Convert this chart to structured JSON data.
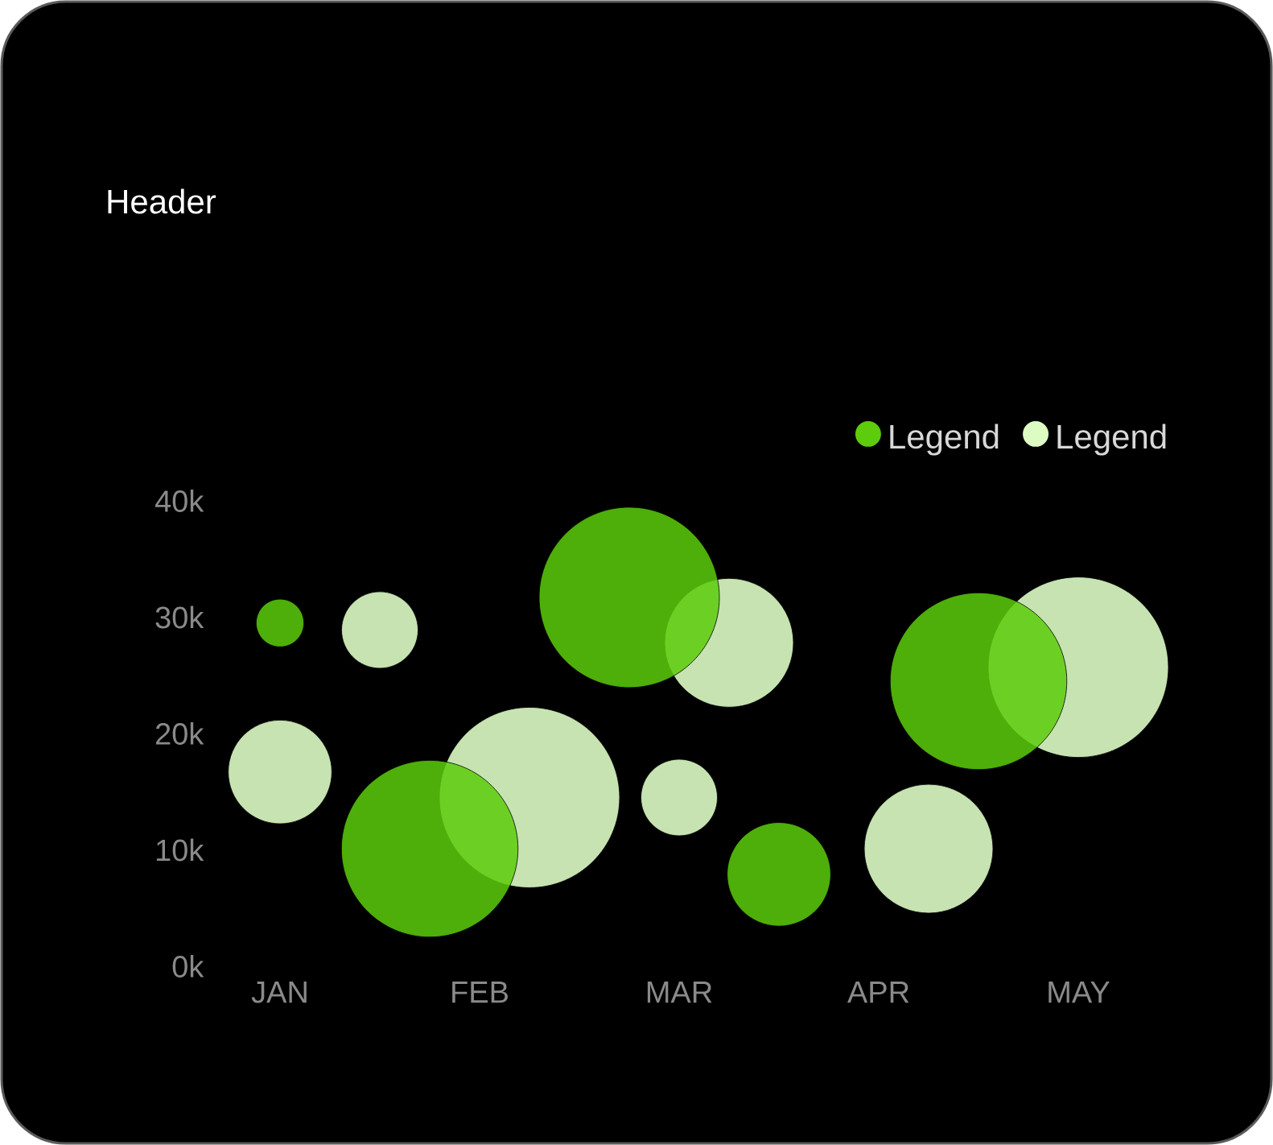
{
  "chart_data": {
    "type": "bubble",
    "title": "Header",
    "legend": "top right",
    "categories": [
      "JAN",
      null,
      null,
      null,
      "FEB",
      null,
      null,
      null,
      "MAR",
      null,
      null,
      null,
      "APR",
      null,
      null,
      null,
      "MAY"
    ],
    "ylim": [
      0,
      40000
    ],
    "yticks": [
      {
        "value": 0,
        "label": "0k"
      },
      {
        "value": 10000,
        "label": "10k"
      },
      {
        "value": 20000,
        "label": "20k"
      },
      {
        "value": 30000,
        "label": "30k"
      },
      {
        "value": 40000,
        "label": "40k"
      }
    ],
    "series": [
      {
        "name": "Legend",
        "color": "#5ccc0c",
        "values": [
          29500,
          null,
          null,
          10100,
          null,
          null,
          null,
          31700,
          null,
          null,
          7900,
          null,
          null,
          null,
          24500,
          null,
          null
        ],
        "sizes": [
          0.07,
          null,
          null,
          0.96,
          null,
          null,
          null,
          1,
          null,
          null,
          0.33,
          null,
          null,
          null,
          0.96,
          null,
          null
        ]
      },
      {
        "name": "Legend",
        "color": "#dcfcc4",
        "values": [
          16700,
          null,
          28900,
          null,
          null,
          14500,
          null,
          null,
          14500,
          27800,
          null,
          null,
          null,
          10100,
          null,
          null,
          25700
        ],
        "sizes": [
          0.33,
          null,
          0.18,
          null,
          null,
          1,
          null,
          null,
          0.18,
          0.51,
          null,
          null,
          null,
          0.51,
          null,
          null,
          1
        ]
      }
    ]
  }
}
